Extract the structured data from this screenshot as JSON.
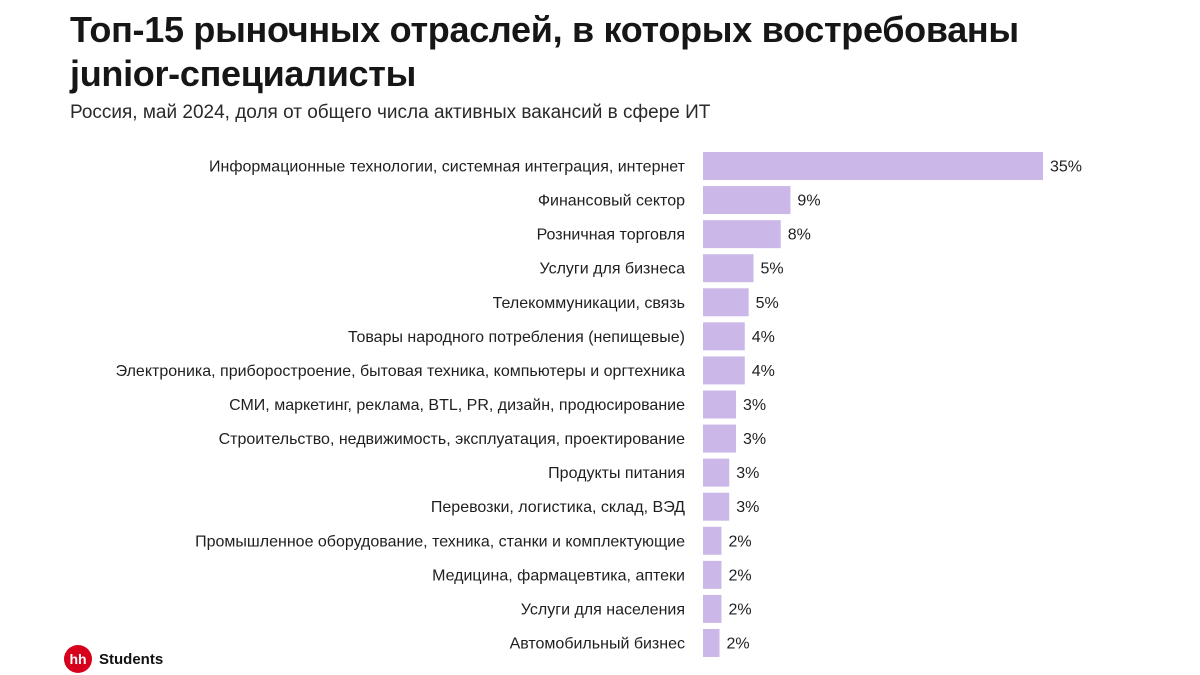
{
  "chart_data": {
    "type": "bar",
    "orientation": "horizontal",
    "title": "Топ-15 рыночных отраслей, в которых востребованы junior-специалисты",
    "subtitle": "Россия, май 2024, доля от общего числа активных вакансий в сфере ИТ",
    "unit": "%",
    "bar_color": "#cbb8e8",
    "categories": [
      "Информационные технологии, системная интеграция, интернет",
      "Финансовый сектор",
      "Розничная торговля",
      "Услуги для бизнеса",
      "Телекоммуникации, связь",
      "Товары народного потребления (непищевые)",
      "Электроника, приборостроение, бытовая техника, компьютеры и оргтехника",
      "СМИ, маркетинг, реклама, BTL, PR, дизайн, продюсирование",
      "Строительство, недвижимость, эксплуатация, проектирование",
      "Продукты питания",
      "Перевозки, логистика, склад, ВЭД",
      "Промышленное оборудование, техника, станки и комплектующие",
      "Медицина, фармацевтика, аптеки",
      "Услуги для населения",
      "Автомобильный бизнес"
    ],
    "values": [
      35,
      9,
      8,
      5,
      5,
      4,
      4,
      3,
      3,
      3,
      3,
      2,
      2,
      2,
      2
    ],
    "bar_values_exact": [
      35,
      9,
      8,
      5.2,
      4.7,
      4.3,
      4.3,
      3.4,
      3.4,
      2.7,
      2.7,
      1.9,
      1.9,
      1.9,
      1.7
    ],
    "data_labels": [
      "35%",
      "9%",
      "8%",
      "5%",
      "5%",
      "4%",
      "4%",
      "3%",
      "3%",
      "3%",
      "3%",
      "2%",
      "2%",
      "2%",
      "2%"
    ],
    "xlim": [
      0,
      35
    ]
  },
  "brand": {
    "badge": "hh",
    "name": "Students",
    "color": "#d6001c"
  }
}
